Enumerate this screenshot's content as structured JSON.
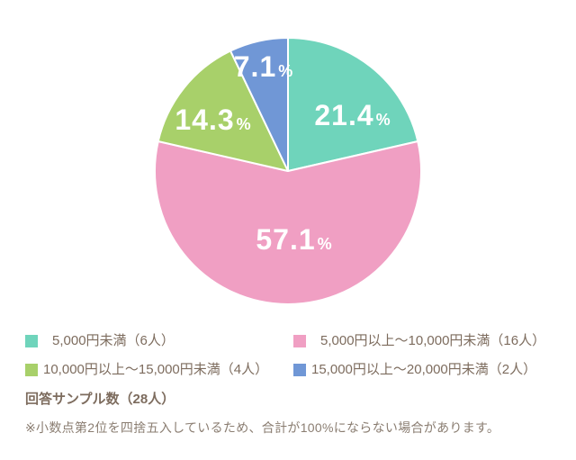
{
  "chart_data": {
    "type": "pie",
    "unit": "%",
    "start_angle_deg": 0,
    "direction": "clockwise",
    "legend_position": "bottom",
    "sample_size": 28,
    "sample_label": "回答サンプル数（28人）",
    "note": "※小数点第2位を四捨五入しているため、合計が100%にならない場合があります。",
    "slices": [
      {
        "id": "under-5000",
        "label": "5,000円未満（6人）",
        "value": 21.4,
        "value_label": "21.4",
        "count": 6,
        "color": "#6fd4bb"
      },
      {
        "id": "5000-10000",
        "label": "5,000円以上～10,000円未満（16人）",
        "value": 57.1,
        "value_label": "57.1",
        "count": 16,
        "color": "#f09fc3"
      },
      {
        "id": "10000-15000",
        "label": "10,000円以上～15,000円未満（4人）",
        "value": 14.3,
        "value_label": "14.3",
        "count": 4,
        "color": "#a8d06a"
      },
      {
        "id": "15000-20000",
        "label": "15,000円以上～20,000円未満（2人）",
        "value": 7.1,
        "value_label": "7.1",
        "count": 2,
        "color": "#7097d6"
      }
    ]
  }
}
